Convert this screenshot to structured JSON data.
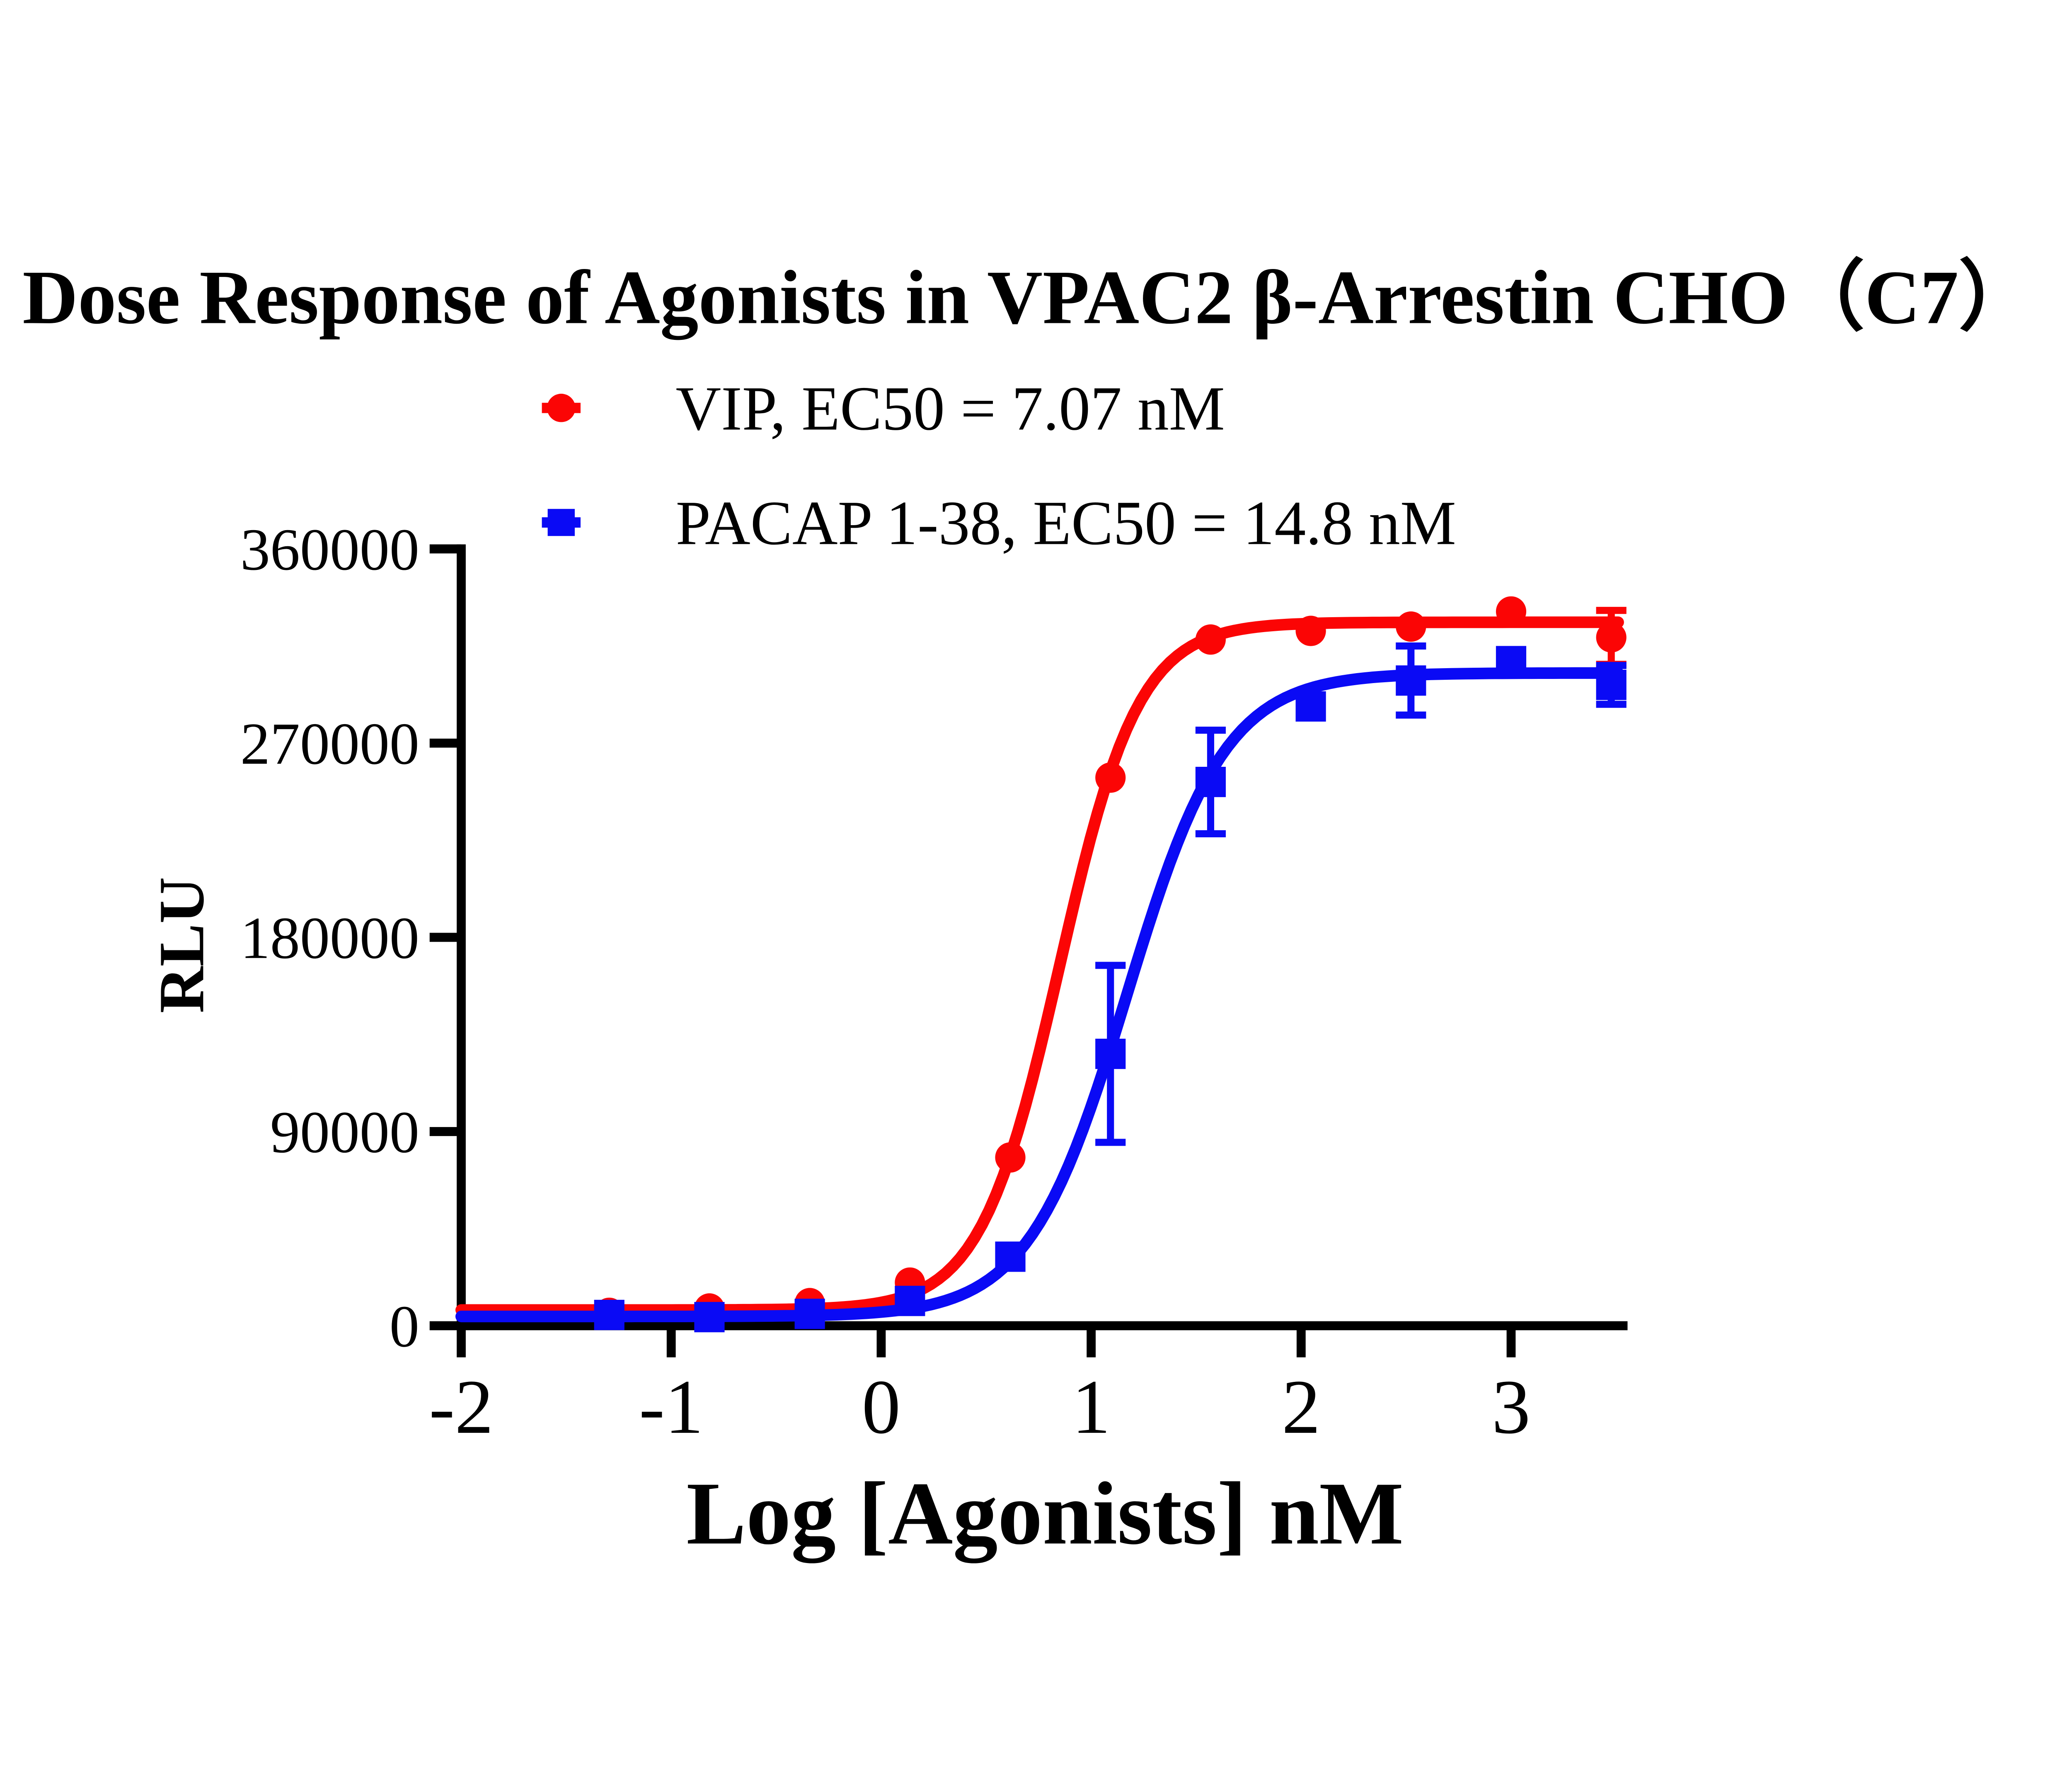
{
  "title": "Dose Response of Agonists in VPAC2 β-Arrestin CHO（C7）",
  "chart_data": {
    "type": "line",
    "title": "Dose Response of Agonists in VPAC2 β-Arrestin CHO（C7）",
    "xlabel": "Log [Agonists] nM",
    "ylabel": "RLU",
    "xlim": [
      -2,
      3.55
    ],
    "ylim": [
      0,
      360000
    ],
    "x_ticks": [
      -2,
      -1,
      0,
      1,
      2,
      3
    ],
    "y_ticks": [
      0,
      90000,
      180000,
      270000,
      360000
    ],
    "grid": false,
    "legend_position": "top-center",
    "background_color": "#ffffff",
    "axis_color": "#000000",
    "series": [
      {
        "id": "vip",
        "name": "VIP, EC50 = 7.07 nM",
        "ec50_nM": 7.07,
        "color": "#fb0505",
        "marker": "circle",
        "x": [
          -1.295,
          -0.818,
          -0.34,
          0.137,
          0.615,
          1.092,
          1.569,
          2.046,
          2.523,
          3.0,
          3.477
        ],
        "y": [
          6000,
          8000,
          10500,
          20000,
          78000,
          254000,
          318000,
          322000,
          324000,
          331000,
          319000
        ],
        "err": [
          0,
          0,
          0,
          0,
          0,
          0,
          0,
          0,
          0,
          0,
          12500
        ],
        "fit": {
          "bottom": 7300,
          "top": 326000,
          "logec50": 0.8494,
          "hill": 2.3
        }
      },
      {
        "id": "pacap",
        "name": "PACAP 1-38, EC50 = 14.8 nM",
        "ec50_nM": 14.8,
        "color": "#0a0af5",
        "marker": "square",
        "x": [
          -1.295,
          -0.818,
          -0.34,
          0.137,
          0.615,
          1.092,
          1.569,
          2.046,
          2.523,
          3.0,
          3.477
        ],
        "y": [
          5000,
          4000,
          5500,
          11500,
          32000,
          126000,
          252000,
          287000,
          299000,
          308000,
          297000
        ],
        "err": [
          0,
          0,
          0,
          0,
          0,
          41000,
          24000,
          0,
          16000,
          0,
          9000
        ],
        "fit": {
          "bottom": 4300,
          "top": 302500,
          "logec50": 1.1703,
          "hill": 1.85
        }
      }
    ]
  }
}
